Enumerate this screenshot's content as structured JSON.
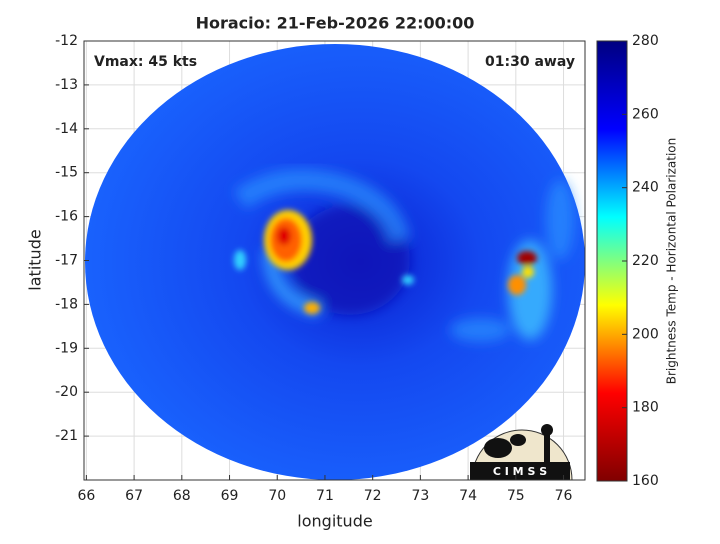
{
  "chart_data": {
    "type": "image",
    "title": "Horacio: 21-Feb-2026 22:00:00",
    "annotations": [
      "Vmax: 45 kts",
      "01:30 away"
    ],
    "xlabel": "longitude",
    "ylabel": "latitude",
    "xlim": [
      65.95,
      76.45
    ],
    "xticks": [
      66,
      67,
      68,
      69,
      70,
      71,
      72,
      73,
      74,
      75,
      76
    ],
    "ylim": [
      -22,
      -12
    ],
    "yticks": [
      -12,
      -13,
      -14,
      -15,
      -16,
      -17,
      -18,
      -19,
      -20,
      -21
    ],
    "grid": true,
    "colorbar": {
      "label": "Brightness Temp - Horizontal Polarization",
      "lim": [
        160,
        280
      ],
      "ticks": [
        160,
        180,
        200,
        220,
        240,
        260,
        280
      ],
      "colormap": [
        "#800000",
        "#ff0000",
        "#ffff00",
        "#00ffff",
        "#0000ff",
        "#000080"
      ]
    },
    "logo": "C I M S S"
  }
}
